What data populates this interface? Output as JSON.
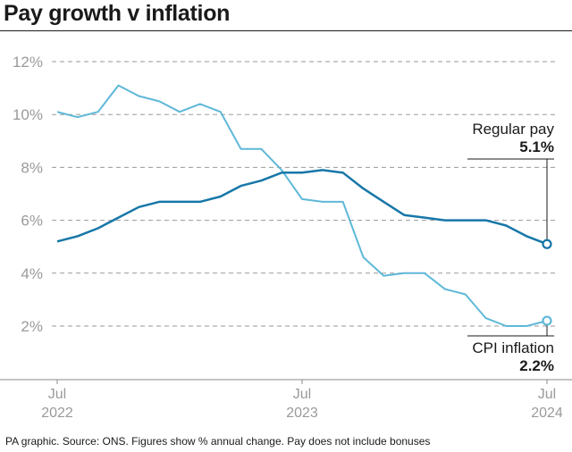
{
  "title": "Pay growth v inflation",
  "footer": "PA graphic. Source: ONS. Figures show % annual change. Pay does not include bonuses",
  "chart_data": {
    "type": "line",
    "title": "Pay growth v inflation",
    "ylim": [
      0,
      12
    ],
    "y_ticks": [
      2,
      4,
      6,
      8,
      10,
      12
    ],
    "y_tick_labels": [
      "2%",
      "4%",
      "6%",
      "8%",
      "10%",
      "12%"
    ],
    "grid": true,
    "x_tick_labels": [
      {
        "line1": "Jul",
        "line2": "2022"
      },
      {
        "line1": "Jul",
        "line2": "2023"
      },
      {
        "line1": "Jul",
        "line2": "2024"
      }
    ],
    "x": [
      "Jul 2022",
      "Aug 2022",
      "Sep 2022",
      "Oct 2022",
      "Nov 2022",
      "Dec 2022",
      "Jan 2023",
      "Feb 2023",
      "Mar 2023",
      "Apr 2023",
      "May 2023",
      "Jun 2023",
      "Jul 2023",
      "Aug 2023",
      "Sep 2023",
      "Oct 2023",
      "Nov 2023",
      "Dec 2023",
      "Jan 2024",
      "Feb 2024",
      "Mar 2024",
      "Apr 2024",
      "May 2024",
      "Jun 2024",
      "Jul 2024"
    ],
    "series": [
      {
        "name": "Regular pay",
        "color": "#1777a8",
        "values": [
          5.2,
          5.4,
          5.7,
          6.1,
          6.5,
          6.7,
          6.7,
          6.7,
          6.9,
          7.3,
          7.5,
          7.8,
          7.8,
          7.9,
          7.8,
          7.2,
          6.7,
          6.2,
          6.1,
          6.0,
          6.0,
          6.0,
          5.8,
          5.4,
          5.1
        ],
        "end_label": "5.1%"
      },
      {
        "name": "CPI inflation",
        "color": "#5fb8d8",
        "values": [
          10.1,
          9.9,
          10.1,
          11.1,
          10.7,
          10.5,
          10.1,
          10.4,
          10.1,
          8.7,
          8.7,
          7.9,
          6.8,
          6.7,
          6.7,
          4.6,
          3.9,
          4.0,
          4.0,
          3.4,
          3.2,
          2.3,
          2.0,
          2.0,
          2.2
        ],
        "end_label": "2.2%"
      }
    ]
  }
}
